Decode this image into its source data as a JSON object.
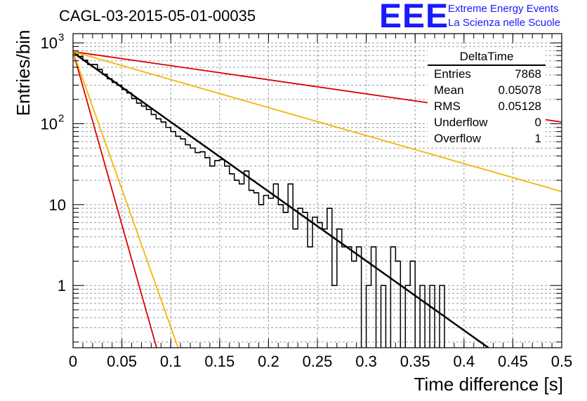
{
  "header": {
    "title": "CAGL-03-2015-05-01-00035",
    "logo": "EEE",
    "logo_line1": "Extreme Energy Events",
    "logo_line2": "La Scienza nelle Scuole"
  },
  "stats_box": {
    "name": "DeltaTime",
    "rows": [
      {
        "label": "Entries",
        "value": "7868"
      },
      {
        "label": "Mean",
        "value": "0.05078"
      },
      {
        "label": "RMS",
        "value": "0.05128"
      },
      {
        "label": "Underflow",
        "value": "0"
      },
      {
        "label": "Overflow",
        "value": "1"
      }
    ]
  },
  "chart_data": {
    "type": "line",
    "xlabel": "Time difference [s]",
    "ylabel": "Entries/bin",
    "xlim": [
      0,
      0.5
    ],
    "ylim": [
      0.17,
      1300
    ],
    "yscale": "log",
    "grid": true,
    "x_ticks": [
      "0",
      "0.05",
      "0.1",
      "0.15",
      "0.2",
      "0.25",
      "0.3",
      "0.35",
      "0.4",
      "0.45",
      "0.5"
    ],
    "y_ticks": [
      {
        "value": 1,
        "label": "1"
      },
      {
        "value": 10,
        "label": "10"
      },
      {
        "value": 100,
        "label": "10",
        "sup": "2"
      },
      {
        "value": 1000,
        "label": "10",
        "sup": "3"
      }
    ],
    "histogram": {
      "bin_width": 0.005,
      "color": "#000000",
      "counts": [
        770,
        680,
        610,
        540,
        540,
        470,
        410,
        360,
        325,
        300,
        265,
        240,
        205,
        180,
        165,
        150,
        130,
        115,
        105,
        90,
        80,
        70,
        65,
        55,
        50,
        44,
        45,
        38,
        30,
        35,
        36,
        30,
        24,
        20,
        18,
        26,
        15,
        14,
        10,
        13,
        12,
        18,
        10,
        8,
        18,
        5,
        9,
        8,
        3,
        7,
        6,
        5,
        9,
        1,
        5,
        3,
        3,
        2,
        3,
        0,
        1,
        3,
        0,
        1,
        0,
        3,
        2,
        0,
        1,
        2,
        0,
        1,
        0,
        1,
        0,
        1,
        0,
        0,
        0,
        0,
        0,
        0,
        0,
        0,
        0,
        0,
        0,
        0,
        0,
        0,
        0,
        0,
        0,
        0,
        0,
        0,
        0,
        0,
        0,
        0
      ]
    },
    "series": [
      {
        "color": "#000000",
        "width": 2.5,
        "x": [
          0,
          0.425
        ],
        "y": [
          760,
          0.17
        ]
      },
      {
        "color": "#dd0000",
        "width": 1.8,
        "x": [
          0,
          0.5
        ],
        "y": [
          780,
          105
        ]
      },
      {
        "color": "#f0b800",
        "width": 1.8,
        "x": [
          0,
          0.5
        ],
        "y": [
          780,
          14.5
        ]
      },
      {
        "color": "#dd0000",
        "width": 1.8,
        "x": [
          0,
          0.0855
        ],
        "y": [
          780,
          0.17
        ]
      },
      {
        "color": "#f0b800",
        "width": 1.8,
        "x": [
          0,
          0.1075
        ],
        "y": [
          780,
          0.17
        ]
      }
    ]
  }
}
